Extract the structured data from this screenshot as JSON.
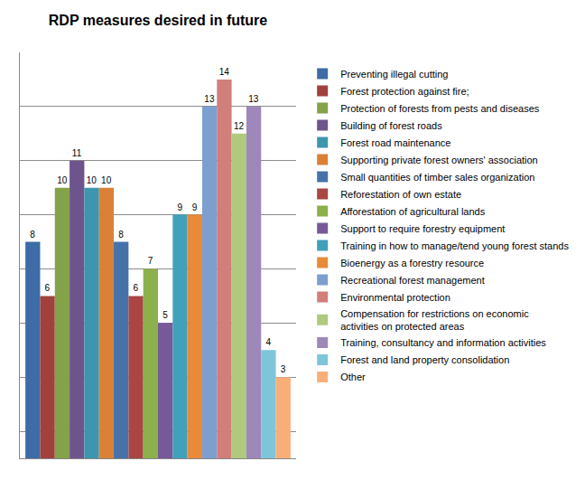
{
  "chart_data": {
    "type": "bar",
    "title": "RDP measures desired in future",
    "categories": [
      null
    ],
    "series": [
      {
        "name": "Preventing illegal cutting",
        "color": "#3d6ca6",
        "values": [
          8
        ]
      },
      {
        "name": "Forest protection against fire;",
        "color": "#a0413d",
        "values": [
          6
        ]
      },
      {
        "name": "Protection of forests from pests and diseases",
        "color": "#83a24a",
        "values": [
          10
        ]
      },
      {
        "name": "Building of forest roads",
        "color": "#6e548d",
        "values": [
          11
        ]
      },
      {
        "name": "Forest road maintenance",
        "color": "#3d96ae",
        "values": [
          10
        ]
      },
      {
        "name": "Supporting private forest owners' association",
        "color": "#da8137",
        "values": [
          10
        ]
      },
      {
        "name": "Small quantities of timber sales organization",
        "color": "#4672aa",
        "values": [
          8
        ]
      },
      {
        "name": "Reforestation of own estate",
        "color": "#a94643",
        "values": [
          6
        ]
      },
      {
        "name": "Afforestation of agricultural lands",
        "color": "#8cb04c",
        "values": [
          7
        ]
      },
      {
        "name": "Support to require forestry equipment",
        "color": "#77599a",
        "values": [
          5
        ]
      },
      {
        "name": "Training in how to manage/tend young forest stands",
        "color": "#41a0ba",
        "values": [
          9
        ]
      },
      {
        "name": "Bioenergy as a forestry resource",
        "color": "#e88a3a",
        "values": [
          9
        ]
      },
      {
        "name": "Recreational forest management",
        "color": "#7c9fd0",
        "values": [
          13
        ]
      },
      {
        "name": "Environmental protection",
        "color": "#d27e7b",
        "values": [
          14
        ]
      },
      {
        "name": "Compensation for restrictions on economic activities on protected areas",
        "color": "#afca7e",
        "values": [
          12
        ]
      },
      {
        "name": "Training, consultancy and information activities",
        "color": "#9e88ba",
        "values": [
          13
        ]
      },
      {
        "name": "Forest and land property consolidation",
        "color": "#7ec5da",
        "values": [
          4
        ]
      },
      {
        "name": "Other",
        "color": "#f9ae7a",
        "values": [
          3
        ]
      }
    ],
    "ylim": [
      0,
      15
    ],
    "yticks": [
      1,
      3,
      5,
      7,
      9,
      11,
      13,
      15
    ],
    "grid": true,
    "legend": "right",
    "data_labels": true,
    "tick_labels": false
  }
}
